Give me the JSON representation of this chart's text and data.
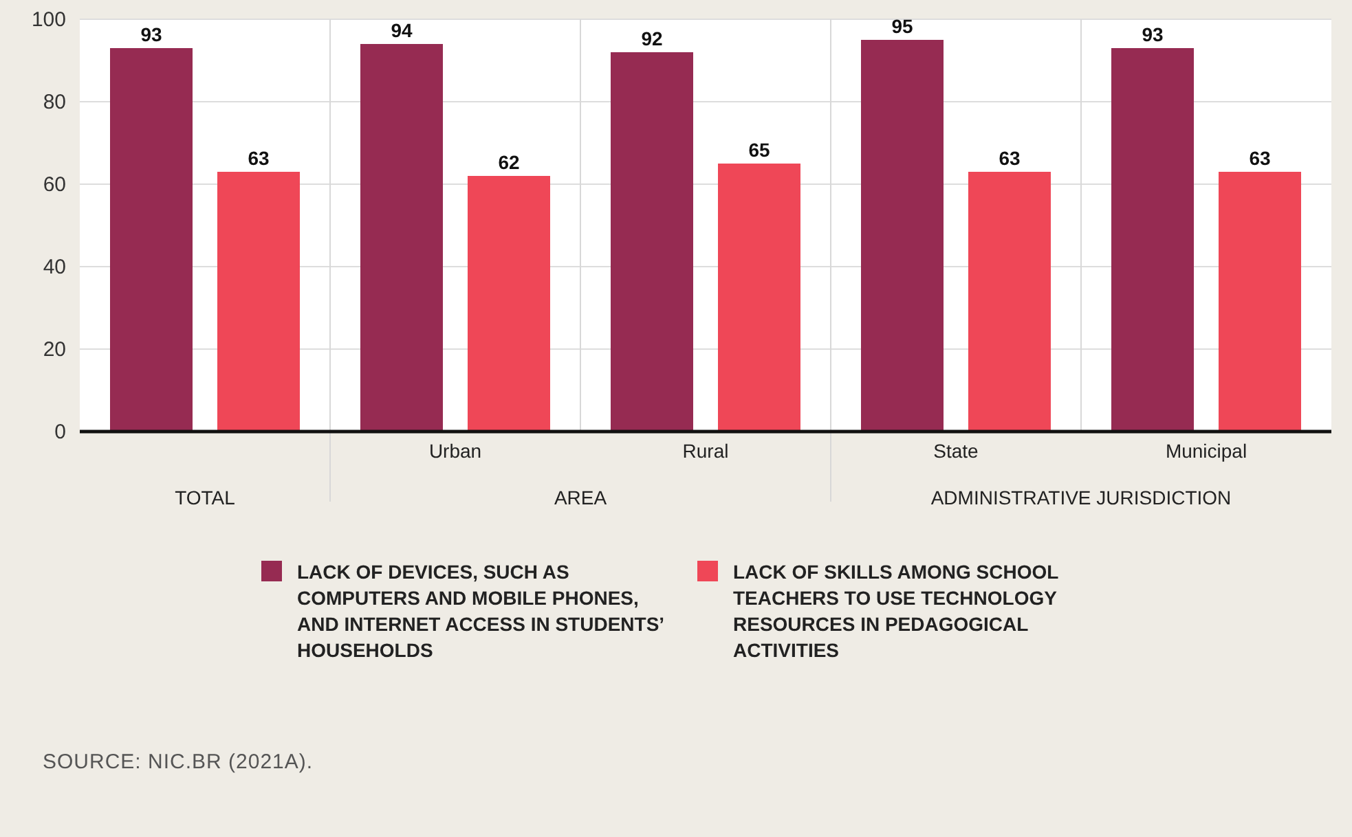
{
  "chart_data": {
    "type": "bar",
    "categories": [
      null,
      "Urban",
      "Rural",
      "State",
      "Municipal"
    ],
    "series": [
      {
        "name": "LACK OF DEVICES, SUCH AS COMPUTERS AND MOBILE PHONES, AND INTERNET ACCESS IN STUDENTS’ HOUSEHOLDS",
        "color": "#962b52",
        "values": [
          93,
          94,
          92,
          95,
          93
        ]
      },
      {
        "name": "LACK OF SKILLS AMONG SCHOOL TEACHERS TO USE TECHNOLOGY RESOURCES IN PEDAGOGICAL ACTIVITIES",
        "color": "#ef4757",
        "values": [
          63,
          62,
          65,
          63,
          63
        ]
      }
    ],
    "ylim": [
      0,
      100
    ],
    "yticks": [
      0,
      20,
      40,
      60,
      80,
      100
    ],
    "grid": "y",
    "data_labels": true,
    "legend": "bottom",
    "annotations": [
      "TOTAL",
      "AREA",
      "ADMINISTRATIVE JURISDICTION",
      "SOURCE: NIC.BR (2021A)."
    ]
  }
}
